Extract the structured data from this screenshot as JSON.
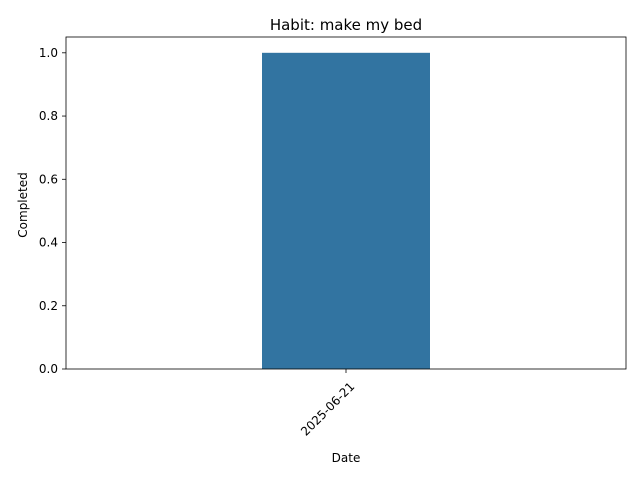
{
  "chart_data": {
    "type": "bar",
    "title": "Habit: make my bed",
    "xlabel": "Date",
    "ylabel": "Completed",
    "categories": [
      "2025-06-21"
    ],
    "values": [
      1.0
    ],
    "ylim": [
      0,
      1.05
    ],
    "yticks": [
      0.0,
      0.2,
      0.4,
      0.6,
      0.8,
      1.0
    ],
    "ytick_labels": [
      "0.0",
      "0.2",
      "0.4",
      "0.6",
      "0.8",
      "1.0"
    ],
    "xtick_rotation": 45,
    "grid": false,
    "legend": "none",
    "bar_color": "#3274a1"
  }
}
